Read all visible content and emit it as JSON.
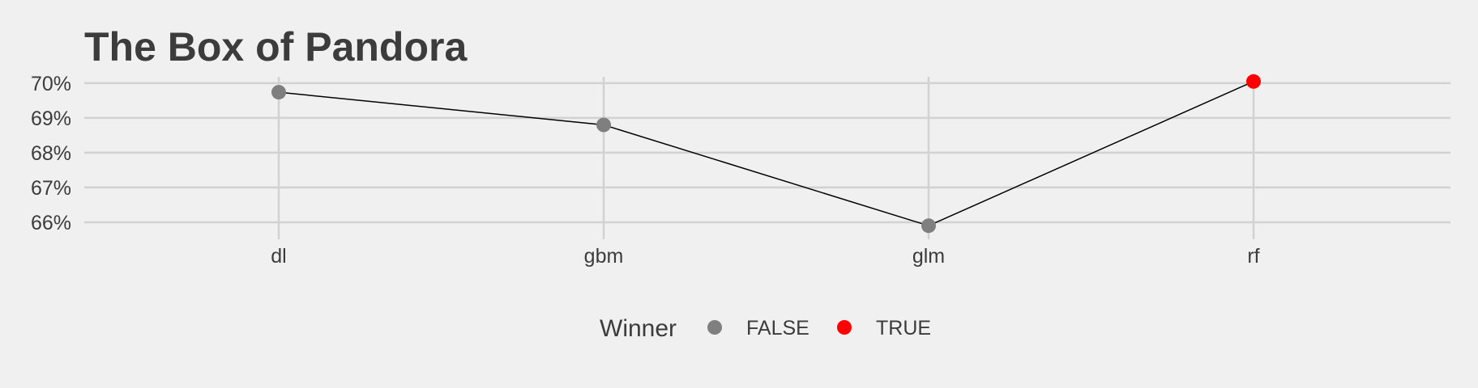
{
  "chart_data": {
    "type": "line",
    "title": "The Box of Pandora",
    "xlabel": "",
    "ylabel": "",
    "categories": [
      "dl",
      "gbm",
      "glm",
      "rf"
    ],
    "values": [
      69.74,
      68.8,
      65.9,
      70.05
    ],
    "winner": [
      "FALSE",
      "FALSE",
      "FALSE",
      "TRUE"
    ],
    "yticks": [
      66,
      67,
      68,
      69,
      70
    ],
    "ytick_labels": [
      "66%",
      "67%",
      "68%",
      "69%",
      "70%"
    ],
    "ylim": [
      65.65,
      70.3
    ],
    "grid": true,
    "legend": {
      "title": "Winner",
      "position": "bottom",
      "entries": [
        {
          "label": "FALSE",
          "color": "#7f7f7f"
        },
        {
          "label": "TRUE",
          "color": "#ff0000"
        }
      ]
    },
    "colors": {
      "FALSE": "#7f7f7f",
      "TRUE": "#ff0000",
      "line": "#000000",
      "grid": "#d2d2d2",
      "background": "#f0f0f0",
      "text": "#3c3c3c"
    }
  }
}
